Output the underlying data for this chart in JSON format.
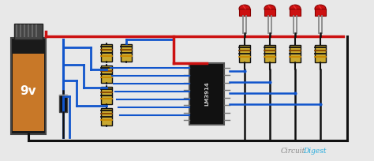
{
  "bg": "#e8e8e8",
  "wire_red": "#cc1111",
  "wire_blue": "#1155cc",
  "wire_black": "#111111",
  "wire_gray": "#888888",
  "battery_body": "#1a1a1a",
  "battery_orange": "#c87828",
  "battery_top": "#2a2a2a",
  "battery_label": "9v",
  "battery_label_color": "#ffffff",
  "res_body": "#c8a830",
  "res_edge": "#111111",
  "res_band1": "#111111",
  "res_band2": "#884400",
  "res_band3": "#cc8800",
  "led_body": "#cc1111",
  "led_shine": "#ff4444",
  "ic_body": "#111111",
  "ic_label": "LM3914",
  "ic_label_color": "#cccccc",
  "diode_body": "#111111",
  "wm_gray": "#888888",
  "wm_blue": "#22aadd",
  "wm_font": 6.5
}
